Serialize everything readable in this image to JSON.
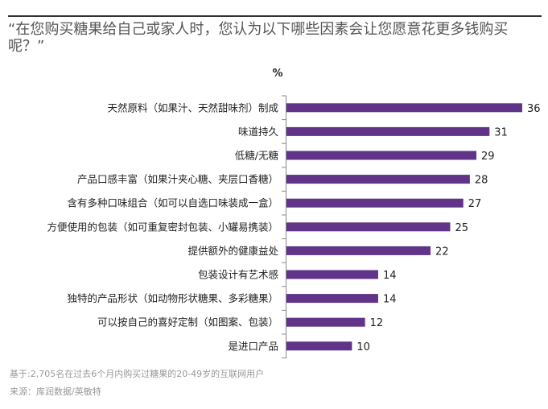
{
  "title": "“在您购买糖果给自己或家人时，您认为以下哪些因素会让您愿意花更多钱购买呢？”",
  "chart_data": {
    "type": "bar",
    "orientation": "horizontal",
    "unit_label": "%",
    "categories": [
      "天然原料（如果汁、天然甜味剂）制成",
      "味道持久",
      "低糖/无糖",
      "产品口感丰富（如果汁夹心糖、夹层口香糖）",
      "含有多种口味组合（如可以自选口味装成一盒）",
      "方便使用的包装（如可重复密封包装、小罐易携装）",
      "提供额外的健康益处",
      "包装设计有艺术感",
      "独特的产品形状（如动物形状糖果、多彩糖果）",
      "可以按自己的喜好定制（如图案、包装）",
      "是进口产品"
    ],
    "values": [
      36,
      31,
      29,
      28,
      27,
      25,
      22,
      14,
      14,
      12,
      10
    ],
    "bar_color": "#5f3489",
    "xlim": [
      0,
      40
    ],
    "grid": false
  },
  "footnote": "基于:2,705名在过去6个月内购买过糖果的20-49岁的互联网用户",
  "source": "来源：库润数据/英敏特"
}
